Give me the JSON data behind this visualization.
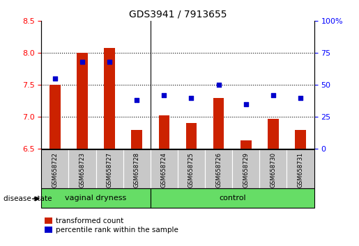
{
  "title": "GDS3941 / 7913655",
  "samples": [
    "GSM658722",
    "GSM658723",
    "GSM658727",
    "GSM658728",
    "GSM658724",
    "GSM658725",
    "GSM658726",
    "GSM658729",
    "GSM658730",
    "GSM658731"
  ],
  "red_values": [
    7.5,
    8.0,
    8.08,
    6.8,
    7.02,
    6.9,
    7.3,
    6.63,
    6.97,
    6.8
  ],
  "blue_values": [
    55,
    68,
    68,
    38,
    42,
    40,
    50,
    35,
    42,
    40
  ],
  "ylim_left": [
    6.5,
    8.5
  ],
  "ylim_right": [
    0,
    100
  ],
  "yticks_left": [
    6.5,
    7.0,
    7.5,
    8.0,
    8.5
  ],
  "yticks_right": [
    0,
    25,
    50,
    75,
    100
  ],
  "groups": [
    {
      "label": "vaginal dryness",
      "start": 0,
      "end": 4
    },
    {
      "label": "control",
      "start": 4,
      "end": 10
    }
  ],
  "bar_color": "#CC2200",
  "dot_color": "#0000CC",
  "green_color": "#66DD66",
  "tick_bg": "#C8C8C8",
  "legend_red": "transformed count",
  "legend_blue": "percentile rank within the sample",
  "disease_state_label": "disease state",
  "separator": 4,
  "grid_yticks": [
    7.0,
    7.5,
    8.0
  ]
}
